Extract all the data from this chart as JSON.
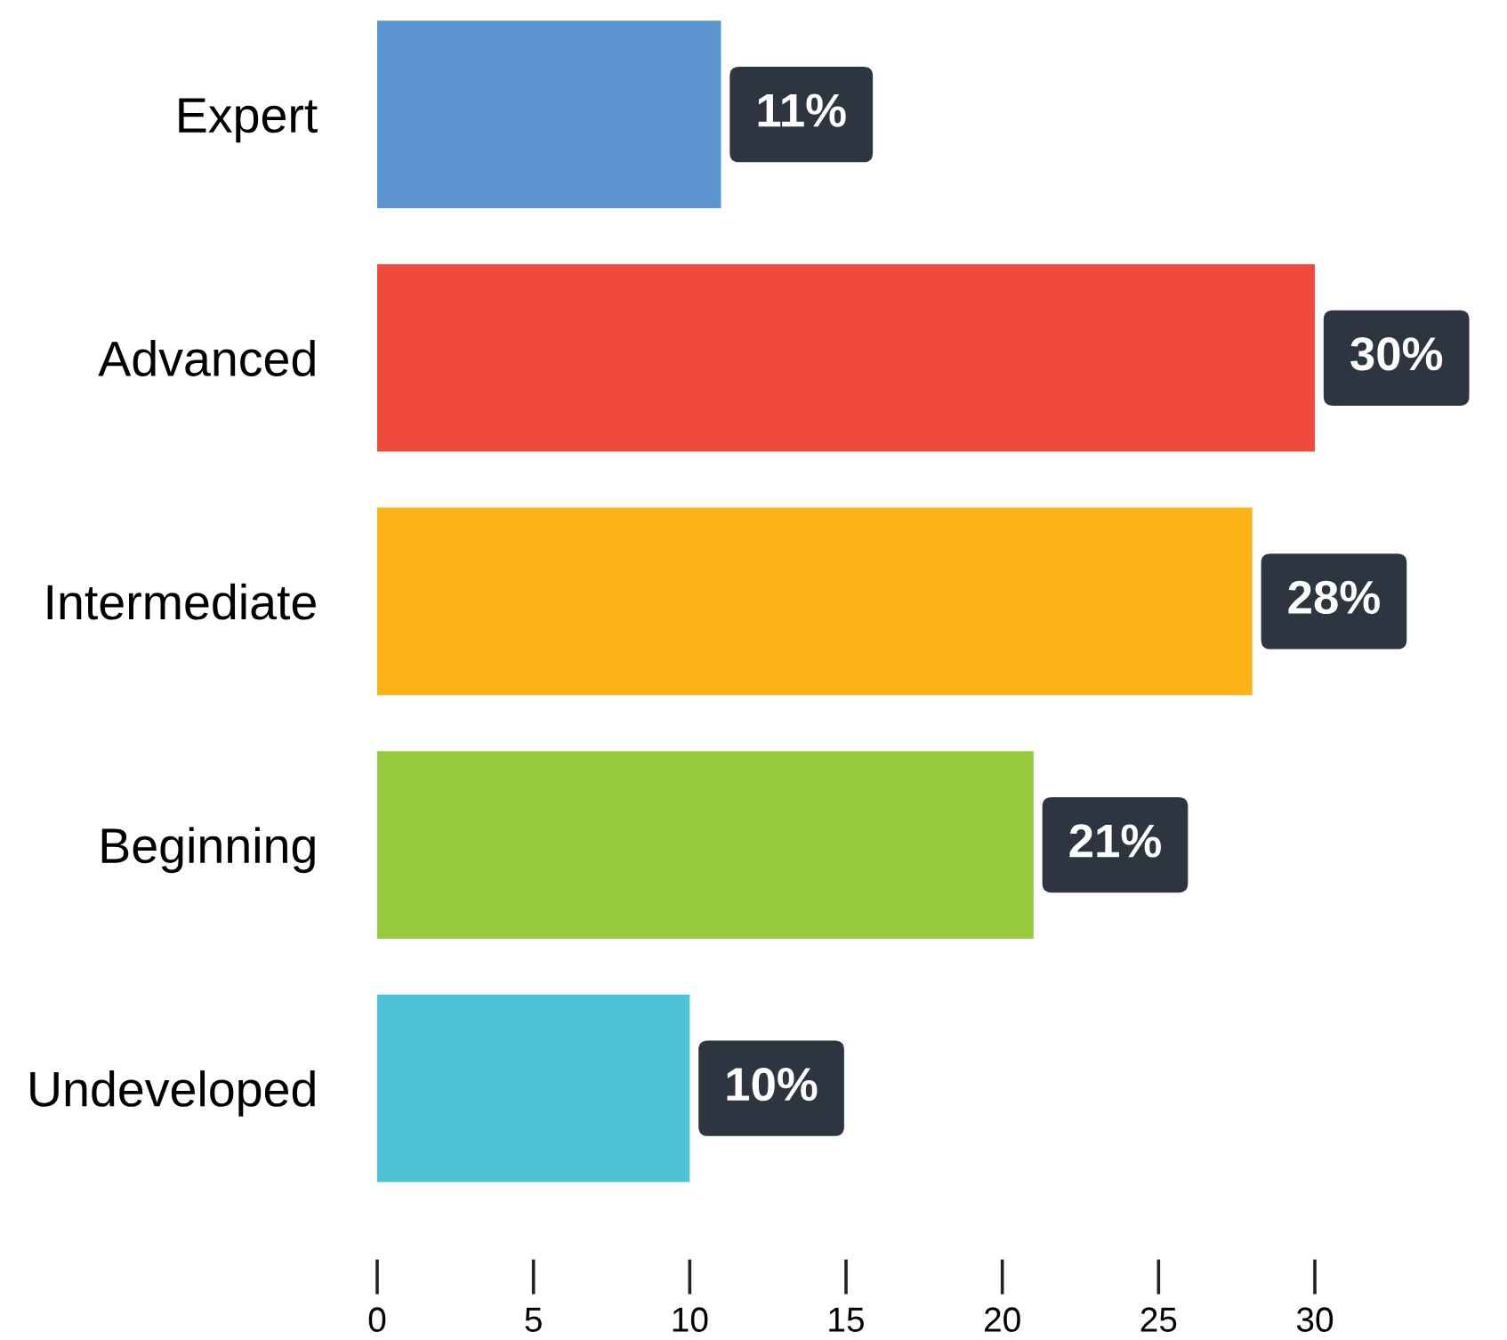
{
  "chart_data": {
    "type": "bar",
    "orientation": "horizontal",
    "categories": [
      "Expert",
      "Advanced",
      "Intermediate",
      "Beginning",
      "Undeveloped"
    ],
    "values": [
      11,
      30,
      28,
      21,
      10
    ],
    "colors": [
      "#5b94cf",
      "#f04a3e",
      "#fdb217",
      "#97c93d",
      "#4dc4d6"
    ],
    "value_labels": [
      "11%",
      "30%",
      "28%",
      "21%",
      "10%"
    ],
    "xlim": [
      0,
      30
    ],
    "xticks": [
      0,
      5,
      10,
      15,
      20,
      25,
      30
    ],
    "grid": false,
    "legend": false
  }
}
